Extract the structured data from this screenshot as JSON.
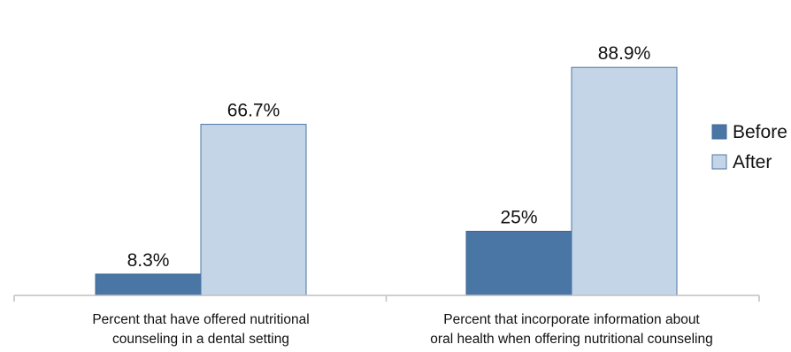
{
  "chart_data": {
    "type": "bar",
    "title": "",
    "xlabel": "",
    "ylabel": "",
    "ylim": [
      0,
      100
    ],
    "grid": false,
    "legend_position": "right",
    "categories": [
      [
        "Percent that have offered nutritional",
        "counseling in a dental setting"
      ],
      [
        "Percent that incorporate information about",
        "oral health when offering nutritional counseling"
      ]
    ],
    "series": [
      {
        "name": "Before",
        "color": "#4a76a6",
        "values": [
          8.3,
          25
        ],
        "labels": [
          "8.3%",
          "25%"
        ]
      },
      {
        "name": "After",
        "color": "#c5d5e8",
        "values": [
          66.7,
          88.9
        ],
        "labels": [
          "66.7%",
          "88.9%"
        ]
      }
    ]
  }
}
